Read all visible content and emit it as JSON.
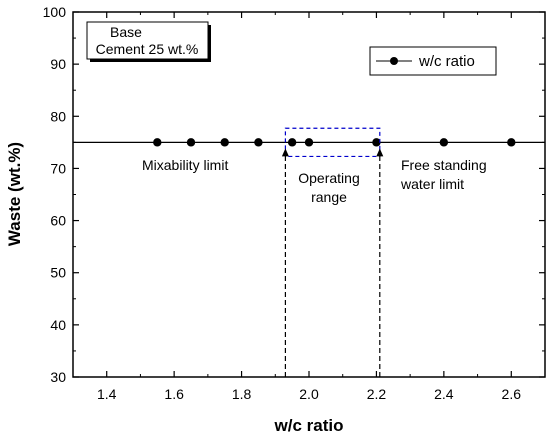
{
  "chart_data": {
    "type": "scatter",
    "xlabel": "w/c ratio",
    "ylabel": "Waste (wt.%)",
    "xlim": [
      1.3,
      2.7
    ],
    "ylim": [
      30,
      100
    ],
    "x_ticks": [
      "1.4",
      "1.6",
      "1.8",
      "2.0",
      "2.2",
      "2.4",
      "2.6"
    ],
    "y_ticks": [
      "30",
      "40",
      "50",
      "60",
      "70",
      "80",
      "90",
      "100"
    ],
    "grid": false,
    "legend_position": "top-right",
    "series": [
      {
        "name": "w/c ratio",
        "x": [
          1.55,
          1.65,
          1.75,
          1.85,
          1.95,
          2.0,
          2.2,
          2.4,
          2.6
        ],
        "y": [
          75,
          75,
          75,
          75,
          75,
          75,
          75,
          75,
          75
        ],
        "color": "#000000",
        "line_extends_x": [
          1.3,
          2.7
        ]
      }
    ],
    "operating_range": {
      "x": [
        1.93,
        2.21
      ],
      "y_box": [
        72.3,
        77.7
      ],
      "color": "#0000cc"
    },
    "annotations": {
      "base_box_line1": "Base",
      "base_box_line2": "Cement 25 wt.%",
      "mixability": "Mixability  limit",
      "operating_line1": "Operating",
      "operating_line2": "range",
      "free_line1": "Free standing",
      "free_line2": "water limit"
    }
  }
}
